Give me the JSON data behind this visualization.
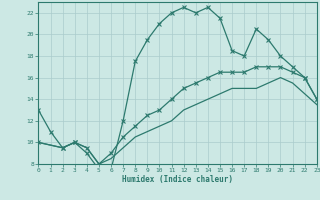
{
  "xlabel": "Humidex (Indice chaleur)",
  "xlim": [
    0,
    23
  ],
  "ylim": [
    8,
    23
  ],
  "yticks": [
    8,
    10,
    12,
    14,
    16,
    18,
    20,
    22
  ],
  "xticks": [
    0,
    1,
    2,
    3,
    4,
    5,
    6,
    7,
    8,
    9,
    10,
    11,
    12,
    13,
    14,
    15,
    16,
    17,
    18,
    19,
    20,
    21,
    22,
    23
  ],
  "bg_color": "#cce8e4",
  "grid_color": "#aacccc",
  "line_color": "#2d7a6e",
  "line1_x": [
    0,
    1,
    2,
    3,
    4,
    5,
    6,
    7,
    8,
    9,
    10,
    11,
    12,
    13,
    14,
    15,
    16,
    17,
    18,
    19,
    20,
    21,
    22,
    23
  ],
  "line1_y": [
    13,
    11,
    9.5,
    10,
    9,
    7.5,
    7.5,
    12,
    17.5,
    19.5,
    21,
    22,
    22.5,
    22,
    22.5,
    21.5,
    18.5,
    18,
    20.5,
    19.5,
    18,
    17,
    16,
    14
  ],
  "line2_x": [
    0,
    2,
    3,
    4,
    5,
    6,
    7,
    8,
    9,
    10,
    11,
    12,
    13,
    14,
    15,
    16,
    17,
    18,
    19,
    20,
    21,
    22,
    23
  ],
  "line2_y": [
    10,
    9.5,
    10,
    9.5,
    8,
    9,
    10.5,
    11.5,
    12.5,
    13,
    14,
    15,
    15.5,
    16,
    16.5,
    16.5,
    16.5,
    17,
    17,
    17,
    16.5,
    16,
    14
  ],
  "line3_x": [
    0,
    2,
    3,
    4,
    5,
    6,
    7,
    8,
    9,
    10,
    11,
    12,
    13,
    14,
    15,
    16,
    17,
    18,
    19,
    20,
    21,
    22,
    23
  ],
  "line3_y": [
    10,
    9.5,
    10,
    9.5,
    8,
    8.5,
    9.5,
    10.5,
    11,
    11.5,
    12,
    13,
    13.5,
    14,
    14.5,
    15,
    15,
    15,
    15.5,
    16,
    15.5,
    14.5,
    13.5
  ]
}
